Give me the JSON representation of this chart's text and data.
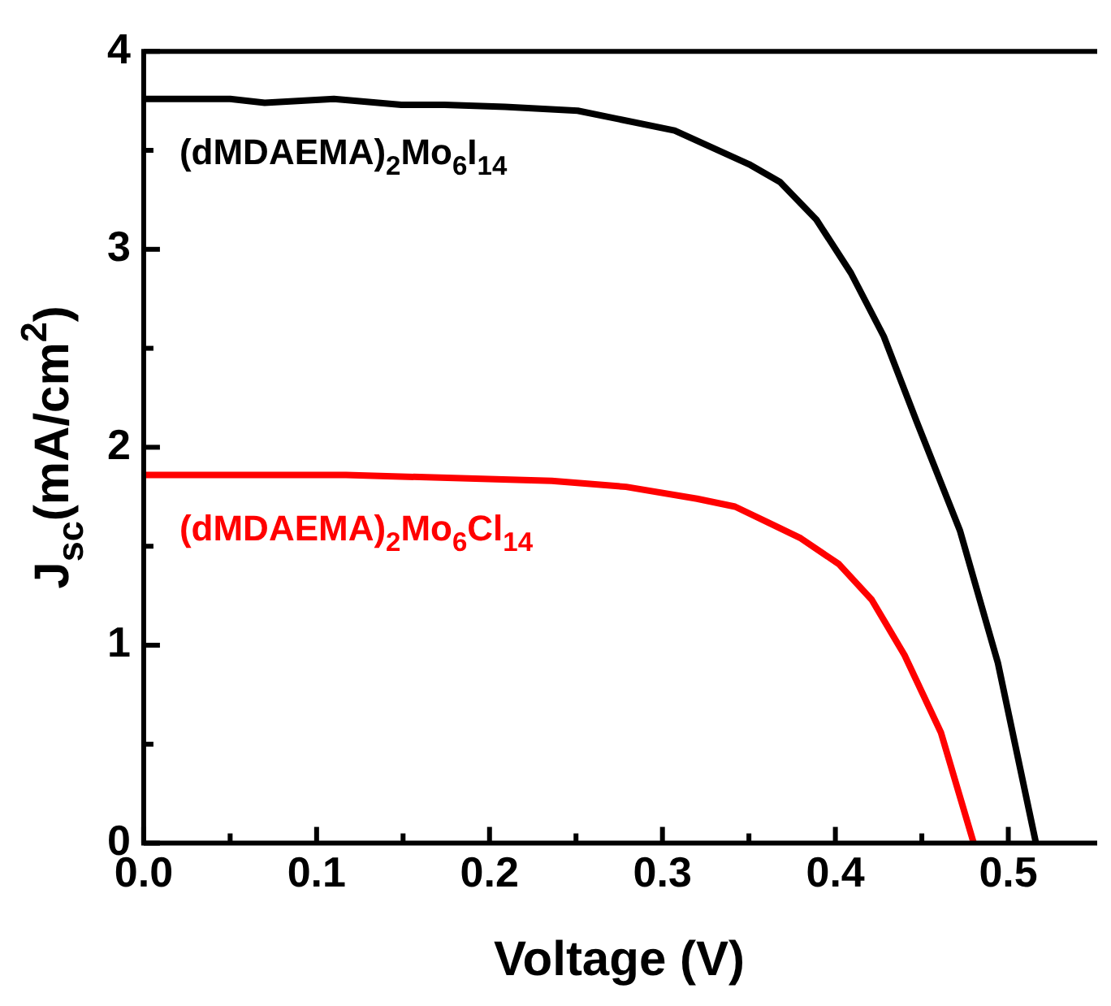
{
  "chart_data": {
    "type": "line",
    "xlabel": "Voltage (V)",
    "ylabel": "J$_{sc}$(mA/cm$^{2}$)",
    "xlim": [
      0,
      0.55
    ],
    "ylim": [
      0,
      4
    ],
    "xticks": [
      {
        "value": 0,
        "label": "0.0"
      },
      {
        "value": 0.05,
        "label": null
      },
      0.1,
      {
        "value": 0.15,
        "label": null
      },
      0.2,
      {
        "value": 0.25,
        "label": null
      },
      0.3,
      {
        "value": 0.35,
        "label": null
      },
      0.4,
      {
        "value": 0.45,
        "label": null
      },
      0.5
    ],
    "yticks": [
      0,
      {
        "value": 0.5,
        "label": null
      },
      1,
      {
        "value": 1.5,
        "label": null
      },
      2,
      {
        "value": 2.5,
        "label": null
      },
      3,
      {
        "value": 3.5,
        "label": null
      },
      4
    ],
    "grid": false,
    "legend": false,
    "marker": "none",
    "line_style": "solid",
    "series": [
      {
        "name": "(dMDAEMA)$_{2}$Mo$_{6}$I$_{14}$",
        "color": "#000000",
        "x": [
          0,
          0.05,
          0.07,
          0.11,
          0.149,
          0.174,
          0.209,
          0.251,
          0.307,
          0.35,
          0.368,
          0.389,
          0.409,
          0.428,
          0.447,
          0.472,
          0.494,
          0.516
        ],
        "values": [
          3.76,
          3.76,
          3.74,
          3.76,
          3.73,
          3.73,
          3.72,
          3.7,
          3.6,
          3.43,
          3.34,
          3.15,
          2.88,
          2.56,
          2.13,
          1.58,
          0.91,
          0
        ]
      },
      {
        "name": "(dMDAEMA)$_{2}$Mo$_{6}$Cl$_{14}$",
        "color": "#ff0000",
        "x": [
          0,
          0.054,
          0.117,
          0.236,
          0.279,
          0.32,
          0.342,
          0.361,
          0.38,
          0.402,
          0.421,
          0.44,
          0.461,
          0.48
        ],
        "values": [
          1.86,
          1.86,
          1.86,
          1.83,
          1.8,
          1.74,
          1.7,
          1.62,
          1.54,
          1.41,
          1.23,
          0.95,
          0.56,
          0
        ]
      }
    ]
  }
}
